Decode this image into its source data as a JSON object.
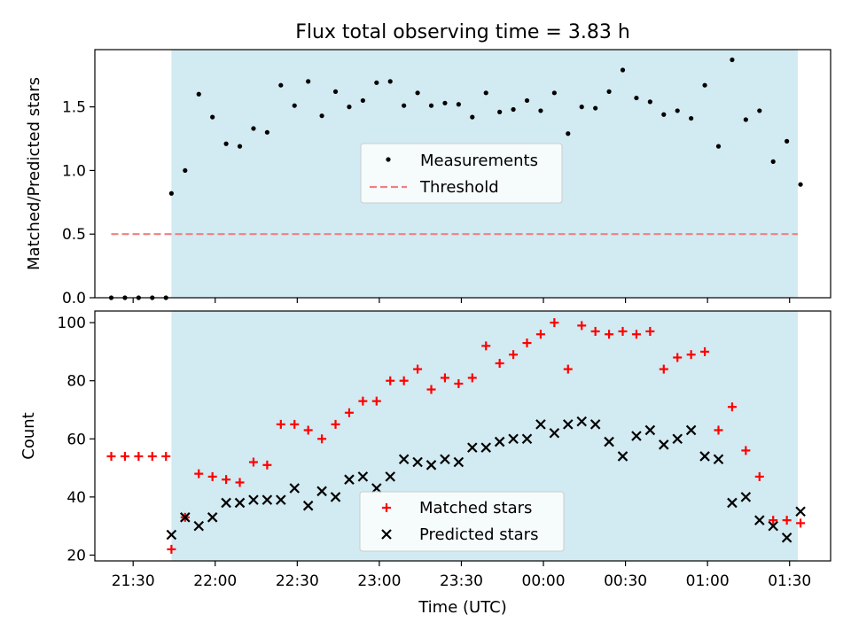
{
  "chart_data": [
    {
      "type": "scatter",
      "title": "Flux total observing time = 3.83 h",
      "xlabel": "",
      "ylabel": "Matched/Predicted stars",
      "xlim": [
        "21:16",
        "01:45"
      ],
      "ylim": [
        0,
        1.95
      ],
      "yticks": [
        0.0,
        0.5,
        1.0,
        1.5
      ],
      "ytick_labels": [
        "0.0",
        "0.5",
        "1.0",
        "1.5"
      ],
      "shaded_interval": [
        "21:44",
        "01:33"
      ],
      "shade_color": "#add8e6",
      "legend_position": "center",
      "series": [
        {
          "name": "Measurements",
          "marker": "dot",
          "color": "#000000",
          "x": [
            "21:22",
            "21:27",
            "21:32",
            "21:37",
            "21:42",
            "21:44",
            "21:49",
            "21:54",
            "21:59",
            "22:04",
            "22:09",
            "22:14",
            "22:19",
            "22:24",
            "22:29",
            "22:34",
            "22:39",
            "22:44",
            "22:49",
            "22:54",
            "22:59",
            "23:04",
            "23:09",
            "23:14",
            "23:19",
            "23:24",
            "23:29",
            "23:34",
            "23:39",
            "23:44",
            "23:49",
            "23:54",
            "23:59",
            "00:04",
            "00:09",
            "00:14",
            "00:19",
            "00:24",
            "00:29",
            "00:34",
            "00:39",
            "00:44",
            "00:49",
            "00:54",
            "00:59",
            "01:04",
            "01:09",
            "01:14",
            "01:19",
            "01:24",
            "01:29",
            "01:34"
          ],
          "y": [
            0.0,
            0.0,
            0.0,
            0.0,
            0.0,
            0.82,
            1.0,
            1.6,
            1.42,
            1.21,
            1.19,
            1.33,
            1.3,
            1.67,
            1.51,
            1.7,
            1.43,
            1.62,
            1.5,
            1.55,
            1.69,
            1.7,
            1.51,
            1.61,
            1.51,
            1.53,
            1.52,
            1.42,
            1.61,
            1.46,
            1.48,
            1.55,
            1.47,
            1.61,
            1.29,
            1.5,
            1.49,
            1.62,
            1.79,
            1.57,
            1.54,
            1.44,
            1.47,
            1.41,
            1.67,
            1.19,
            1.87,
            1.4,
            1.47,
            1.07,
            1.23,
            0.89
          ]
        },
        {
          "name": "Threshold",
          "marker": "dashed-line",
          "color": "#f08080",
          "x": [
            "21:22",
            "01:33"
          ],
          "y": [
            0.5,
            0.5
          ]
        }
      ]
    },
    {
      "type": "scatter",
      "title": "",
      "xlabel": "Time (UTC)",
      "ylabel": "Count",
      "xlim": [
        "21:16",
        "01:45"
      ],
      "ylim": [
        18,
        104
      ],
      "yticks": [
        20,
        40,
        60,
        80,
        100
      ],
      "ytick_labels": [
        "20",
        "40",
        "60",
        "80",
        "100"
      ],
      "xticks": [
        "21:30",
        "22:00",
        "22:30",
        "23:00",
        "23:30",
        "00:00",
        "00:30",
        "01:00",
        "01:30"
      ],
      "xtick_labels": [
        "21:30",
        "22:00",
        "22:30",
        "23:00",
        "23:30",
        "00:00",
        "00:30",
        "01:00",
        "01:30"
      ],
      "shaded_interval": [
        "21:44",
        "01:33"
      ],
      "shade_color": "#add8e6",
      "legend_position": "lower center",
      "series": [
        {
          "name": "Matched stars",
          "marker": "plus",
          "color": "#ff0000",
          "x": [
            "21:22",
            "21:27",
            "21:32",
            "21:37",
            "21:42",
            "21:44",
            "21:49",
            "21:54",
            "21:59",
            "22:04",
            "22:09",
            "22:14",
            "22:19",
            "22:24",
            "22:29",
            "22:34",
            "22:39",
            "22:44",
            "22:49",
            "22:54",
            "22:59",
            "23:04",
            "23:09",
            "23:14",
            "23:19",
            "23:24",
            "23:29",
            "23:34",
            "23:39",
            "23:44",
            "23:49",
            "23:54",
            "23:59",
            "00:04",
            "00:09",
            "00:14",
            "00:19",
            "00:24",
            "00:29",
            "00:34",
            "00:39",
            "00:44",
            "00:49",
            "00:54",
            "00:59",
            "01:04",
            "01:09",
            "01:14",
            "01:19",
            "01:24",
            "01:29",
            "01:34"
          ],
          "y": [
            54,
            54,
            54,
            54,
            54,
            22,
            33,
            48,
            47,
            46,
            45,
            52,
            51,
            65,
            65,
            63,
            60,
            65,
            69,
            73,
            73,
            80,
            80,
            84,
            77,
            81,
            79,
            81,
            92,
            86,
            89,
            93,
            96,
            100,
            84,
            99,
            97,
            96,
            97,
            96,
            97,
            84,
            88,
            89,
            90,
            63,
            71,
            56,
            47,
            32,
            32,
            31
          ]
        },
        {
          "name": "Predicted stars",
          "marker": "x",
          "color": "#000000",
          "x": [
            "21:44",
            "21:49",
            "21:54",
            "21:59",
            "22:04",
            "22:09",
            "22:14",
            "22:19",
            "22:24",
            "22:29",
            "22:34",
            "22:39",
            "22:44",
            "22:49",
            "22:54",
            "22:59",
            "23:04",
            "23:09",
            "23:14",
            "23:19",
            "23:24",
            "23:29",
            "23:34",
            "23:39",
            "23:44",
            "23:49",
            "23:54",
            "23:59",
            "00:04",
            "00:09",
            "00:14",
            "00:19",
            "00:24",
            "00:29",
            "00:34",
            "00:39",
            "00:44",
            "00:49",
            "00:54",
            "00:59",
            "01:04",
            "01:09",
            "01:14",
            "01:19",
            "01:24",
            "01:29",
            "01:34"
          ],
          "y": [
            27,
            33,
            30,
            33,
            38,
            38,
            39,
            39,
            39,
            43,
            37,
            42,
            40,
            46,
            47,
            43,
            47,
            53,
            52,
            51,
            53,
            52,
            57,
            57,
            59,
            60,
            60,
            65,
            62,
            65,
            66,
            65,
            59,
            54,
            61,
            63,
            58,
            60,
            63,
            54,
            53,
            38,
            40,
            32,
            30,
            26,
            35
          ]
        }
      ]
    }
  ]
}
